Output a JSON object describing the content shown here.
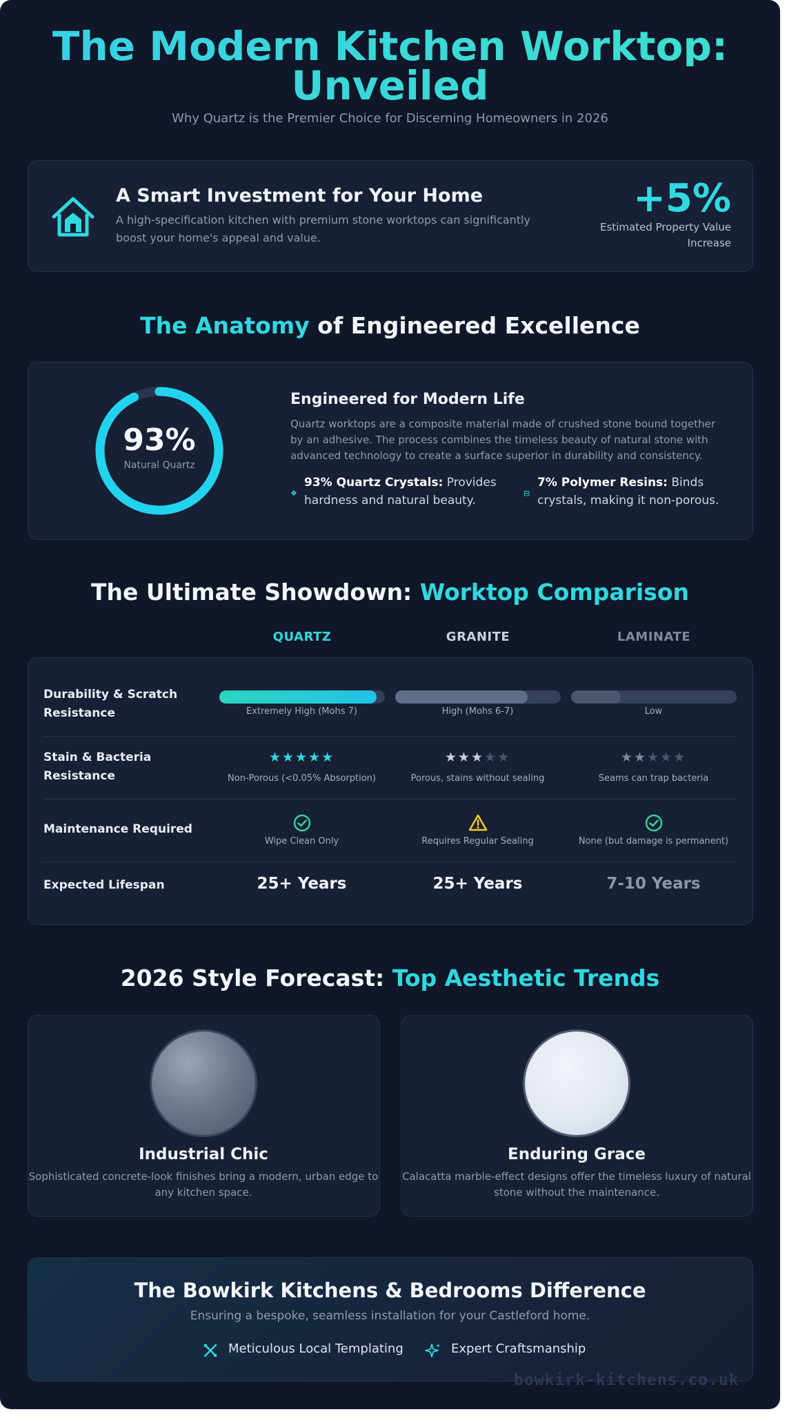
{
  "header": {
    "title_line1": "The Modern Kitchen Worktop:",
    "title_line2": "Unveiled",
    "subtitle": "Why Quartz is the Premier Choice for Discerning Homeowners in 2026"
  },
  "investment": {
    "icon": "house-icon",
    "title": "A Smart Investment for Your Home",
    "text": "A high-specification kitchen with premium stone worktops can significantly boost your home's appeal and value.",
    "stat": "+5%",
    "stat_label": "Estimated Property Value Increase"
  },
  "anatomy": {
    "title_highlight": "The Anatomy",
    "title_rest": " of Engineered Excellence",
    "donut_value": "93%",
    "donut_label": "Natural Quartz",
    "donut_fraction": 0.93,
    "heading": "Engineered for Modern Life",
    "text": "Quartz worktops are a composite material made of crushed stone bound together by an adhesive. The process combines the timeless beauty of natural stone with advanced technology to create a surface superior in durability and consistency.",
    "features": [
      {
        "bold": "93% Quartz Crystals:",
        "text": " Provides hardness and natural beauty.",
        "icon": "crystal-icon"
      },
      {
        "bold": "7% Polymer Resins:",
        "text": " Binds crystals, making it non-porous.",
        "icon": "resin-icon"
      }
    ]
  },
  "comparison": {
    "title_plain": "The Ultimate Showdown: ",
    "title_highlight": "Worktop Comparison",
    "columns": [
      "QUARTZ",
      "GRANITE",
      "LAMINATE"
    ],
    "column_colors": [
      "#2fd9e0",
      "#c9d1dd",
      "#7f8aa0"
    ],
    "rows": {
      "durability": {
        "label": "Durability & Scratch Resistance",
        "levels": [
          0.95,
          0.8,
          0.3
        ],
        "notes": [
          "Extremely High (Mohs 7)",
          "High (Mohs 6-7)",
          "Low"
        ]
      },
      "stain": {
        "label": "Stain & Bacteria Resistance",
        "stars": [
          5,
          3,
          2
        ],
        "star_max": 5,
        "notes": [
          "Non-Porous (<0.05% Absorption)",
          "Porous, stains without sealing",
          "Seams can trap bacteria"
        ]
      },
      "maintenance": {
        "label": "Maintenance Required",
        "icons": [
          "check-circle-icon",
          "warning-icon",
          "check-circle-icon"
        ],
        "notes": [
          "Wipe Clean Only",
          "Requires Regular Sealing",
          "None (but damage is permanent)"
        ]
      },
      "lifespan": {
        "label": "Expected Lifespan",
        "values": [
          "25+ Years",
          "25+ Years",
          "7-10 Years"
        ]
      }
    }
  },
  "trends": {
    "title_plain": "2026 Style Forecast: ",
    "title_highlight": "Top Aesthetic Trends",
    "items": [
      {
        "title": "Industrial Chic",
        "text": "Sophisticated concrete-look finishes bring a modern, urban edge to any kitchen space."
      },
      {
        "title": "Enduring Grace",
        "text": "Calacatta marble-effect designs offer the timeless luxury of natural stone without the maintenance."
      }
    ]
  },
  "footer": {
    "title": "The Bowkirk Kitchens & Bedrooms Difference",
    "subtitle": "Ensuring a bespoke, seamless installation for your Castleford home.",
    "items": [
      {
        "label": "Meticulous Local Templating",
        "icon": "ruler-cross-icon"
      },
      {
        "label": "Expert Craftsmanship",
        "icon": "sparkle-icon"
      }
    ],
    "watermark": "bowkirk-kitchens.co.uk"
  },
  "colors": {
    "background": "#0f1729",
    "card": "#172035",
    "accent": "#2fd9e0",
    "success": "#34d399",
    "warning": "#facc15"
  }
}
